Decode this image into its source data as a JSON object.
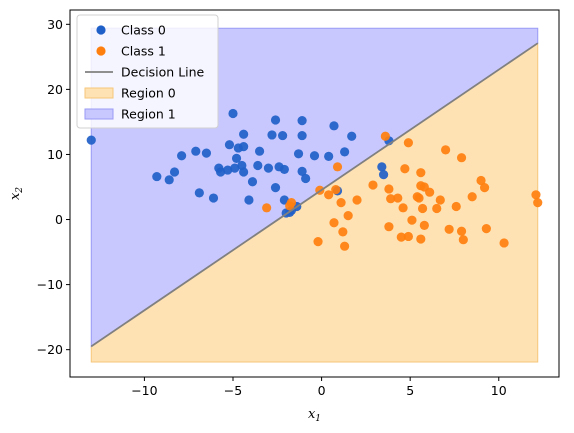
{
  "chart_data": {
    "type": "scatter",
    "title": "",
    "xlabel": "x",
    "xlabel_sub": "1",
    "ylabel": "x",
    "ylabel_sub": "2",
    "xlim": [
      -14.2,
      13.4
    ],
    "ylim": [
      -24.2,
      32.2
    ],
    "xticks": [
      -10,
      -5,
      0,
      5,
      10
    ],
    "yticks": [
      -20,
      -10,
      0,
      10,
      20,
      30
    ],
    "legend_position": "upper-left",
    "grid": false,
    "decision_line": {
      "label": "Decision Line",
      "color": "#808080",
      "points": [
        [
          -13.0,
          -19.5
        ],
        [
          12.2,
          27.1
        ]
      ]
    },
    "regions": [
      {
        "label": "Region 0",
        "color": "#ffe2b3",
        "edge": "#f5c77a"
      },
      {
        "label": "Region 1",
        "color": "#c8c8ff",
        "edge": "#9a9af5"
      }
    ],
    "region_bounds": {
      "x": [
        -13.0,
        12.2
      ],
      "y": [
        -21.9,
        29.4
      ]
    },
    "series": [
      {
        "name": "Class 0",
        "color": "#1f5fc8",
        "points": [
          [
            -13.0,
            12.2
          ],
          [
            -9.3,
            6.6
          ],
          [
            -8.6,
            6.1
          ],
          [
            -8.3,
            7.3
          ],
          [
            -7.9,
            9.8
          ],
          [
            -7.1,
            10.5
          ],
          [
            -6.9,
            4.1
          ],
          [
            -6.5,
            10.2
          ],
          [
            -6.1,
            3.3
          ],
          [
            -5.8,
            7.9
          ],
          [
            -5.7,
            7.3
          ],
          [
            -5.3,
            7.6
          ],
          [
            -5.2,
            11.5
          ],
          [
            -5.0,
            16.3
          ],
          [
            -4.9,
            7.9
          ],
          [
            -4.8,
            9.4
          ],
          [
            -4.7,
            11.0
          ],
          [
            -4.5,
            8.3
          ],
          [
            -4.4,
            11.2
          ],
          [
            -4.4,
            13.1
          ],
          [
            -4.4,
            7.3
          ],
          [
            -4.1,
            3.0
          ],
          [
            -3.9,
            5.8
          ],
          [
            -3.6,
            8.3
          ],
          [
            -3.5,
            10.5
          ],
          [
            -3.0,
            7.9
          ],
          [
            -2.8,
            13.0
          ],
          [
            -2.6,
            15.3
          ],
          [
            -2.6,
            4.9
          ],
          [
            -2.4,
            8.1
          ],
          [
            -2.2,
            12.9
          ],
          [
            -2.1,
            7.7
          ],
          [
            -2.1,
            3.0
          ],
          [
            -2.0,
            1.0
          ],
          [
            -1.7,
            1.4
          ],
          [
            -1.4,
            2.0
          ],
          [
            -1.3,
            10.1
          ],
          [
            -1.1,
            12.9
          ],
          [
            -1.1,
            15.2
          ],
          [
            -1.1,
            7.4
          ],
          [
            -0.9,
            6.3
          ],
          [
            -0.4,
            9.8
          ],
          [
            0.4,
            9.7
          ],
          [
            0.7,
            14.4
          ],
          [
            0.9,
            4.4
          ],
          [
            1.3,
            10.4
          ],
          [
            1.7,
            12.8
          ],
          [
            3.4,
            8.1
          ],
          [
            3.5,
            6.9
          ],
          [
            3.8,
            12.1
          ],
          [
            -1.8,
            1.1
          ]
        ]
      },
      {
        "name": "Class 1",
        "color": "#ff7f0e",
        "points": [
          [
            -3.1,
            1.8
          ],
          [
            -1.8,
            2.1
          ],
          [
            -1.7,
            2.6
          ],
          [
            -0.2,
            -3.4
          ],
          [
            -0.1,
            4.5
          ],
          [
            0.4,
            3.8
          ],
          [
            0.7,
            -0.5
          ],
          [
            0.8,
            4.6
          ],
          [
            0.9,
            8.1
          ],
          [
            1.1,
            2.6
          ],
          [
            1.2,
            -1.9
          ],
          [
            1.3,
            -4.1
          ],
          [
            1.5,
            0.6
          ],
          [
            2.0,
            3.0
          ],
          [
            2.9,
            5.3
          ],
          [
            3.6,
            12.8
          ],
          [
            3.8,
            -1.1
          ],
          [
            3.8,
            4.7
          ],
          [
            3.9,
            3.2
          ],
          [
            4.3,
            3.3
          ],
          [
            4.5,
            -2.7
          ],
          [
            4.7,
            7.8
          ],
          [
            4.9,
            -2.6
          ],
          [
            4.9,
            11.8
          ],
          [
            5.1,
            -0.1
          ],
          [
            5.4,
            3.5
          ],
          [
            5.6,
            7.2
          ],
          [
            5.6,
            5.2
          ],
          [
            5.6,
            -3.0
          ],
          [
            5.7,
            1.7
          ],
          [
            5.8,
            -0.9
          ],
          [
            5.8,
            5.0
          ],
          [
            6.1,
            4.2
          ],
          [
            6.5,
            1.7
          ],
          [
            6.7,
            3.0
          ],
          [
            7.0,
            10.7
          ],
          [
            7.2,
            -1.5
          ],
          [
            7.6,
            2.0
          ],
          [
            7.9,
            9.5
          ],
          [
            7.9,
            -1.8
          ],
          [
            8.0,
            -3.1
          ],
          [
            8.5,
            3.5
          ],
          [
            9.0,
            6.0
          ],
          [
            9.2,
            4.9
          ],
          [
            9.3,
            -1.4
          ],
          [
            10.3,
            -3.6
          ],
          [
            12.1,
            3.8
          ],
          [
            12.2,
            2.6
          ],
          [
            5.5,
            3.3
          ],
          [
            4.6,
            1.8
          ]
        ]
      }
    ]
  }
}
